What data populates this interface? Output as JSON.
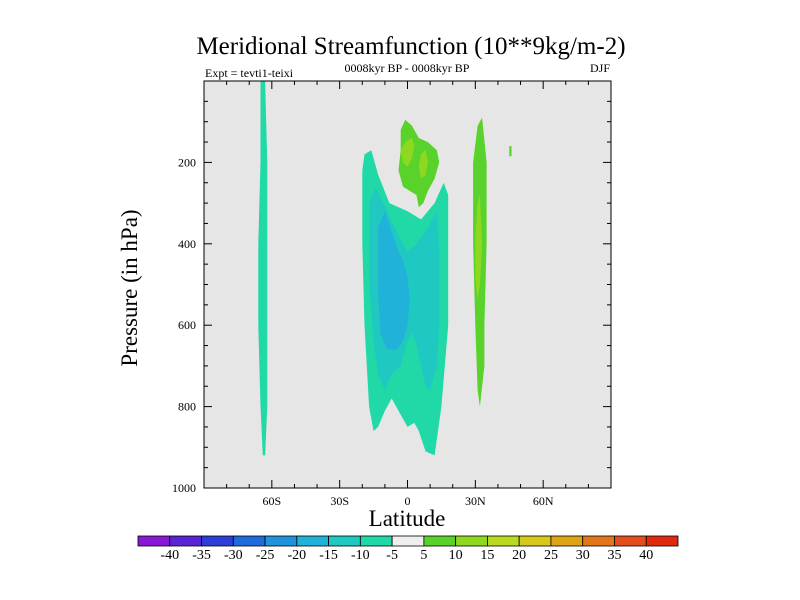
{
  "chart_data": {
    "type": "filled-contour",
    "title": "Meridional Streamfunction (10**9kg/m-2)",
    "subtitle_left": "Expt = tevti1-teixi",
    "subtitle_center": "0008kyr BP - 0008kyr BP",
    "subtitle_right": "DJF",
    "xlabel": "Latitude",
    "ylabel": "Pressure (in hPa)",
    "xlim": [
      -90,
      90
    ],
    "ylim": [
      1000,
      0
    ],
    "x_ticks": [
      {
        "value": -60,
        "label": "60S"
      },
      {
        "value": -30,
        "label": "30S"
      },
      {
        "value": 0,
        "label": "0"
      },
      {
        "value": 30,
        "label": "30N"
      },
      {
        "value": 60,
        "label": "60N"
      }
    ],
    "y_ticks": [
      {
        "value": 200,
        "label": "200"
      },
      {
        "value": 400,
        "label": "400"
      },
      {
        "value": 600,
        "label": "600"
      },
      {
        "value": 800,
        "label": "800"
      },
      {
        "value": 1000,
        "label": "1000"
      }
    ],
    "colorbar": {
      "levels": [
        -40,
        -35,
        -30,
        -25,
        -20,
        -15,
        -10,
        -5,
        5,
        10,
        15,
        20,
        25,
        30,
        35,
        40
      ],
      "labels": [
        "-40",
        "-35",
        "-30",
        "-25",
        "-20",
        "-15",
        "-10",
        "-5",
        "5",
        "10",
        "15",
        "20",
        "25",
        "30",
        "35",
        "40"
      ],
      "colors": [
        "#8a19d6",
        "#5a23d6",
        "#2b3fd8",
        "#1d6bdb",
        "#1f93db",
        "#20b2d8",
        "#1fc9c2",
        "#20d9a6",
        "#eeeeee",
        "#59d32b",
        "#8ed91f",
        "#b9d91e",
        "#d8c81a",
        "#dfa416",
        "#e3761a",
        "#e34c1d",
        "#df2a10"
      ]
    },
    "regions": [
      {
        "name": "strip-60s-neg-5-10",
        "level": "-5 to -10",
        "color": "#20d9a6",
        "points": [
          [
            -65,
            0
          ],
          [
            -63,
            0
          ],
          [
            -62,
            200
          ],
          [
            -62,
            600
          ],
          [
            -62,
            800
          ],
          [
            -63,
            920
          ],
          [
            -64,
            920
          ],
          [
            -65,
            800
          ],
          [
            -66,
            600
          ],
          [
            -66,
            400
          ],
          [
            -65,
            200
          ]
        ]
      },
      {
        "name": "sh-cell-outer",
        "level": "-5 to -10",
        "color": "#20d9a6",
        "points": [
          [
            -19,
            180
          ],
          [
            -16,
            170
          ],
          [
            -13,
            230
          ],
          [
            -8,
            300
          ],
          [
            0,
            320
          ],
          [
            6,
            340
          ],
          [
            12,
            300
          ],
          [
            16,
            250
          ],
          [
            18,
            280
          ],
          [
            18,
            600
          ],
          [
            15,
            800
          ],
          [
            12,
            920
          ],
          [
            8,
            910
          ],
          [
            5,
            860
          ],
          [
            3,
            840
          ],
          [
            0,
            850
          ],
          [
            -3,
            820
          ],
          [
            -7,
            780
          ],
          [
            -10,
            810
          ],
          [
            -13,
            850
          ],
          [
            -15,
            860
          ],
          [
            -17,
            800
          ],
          [
            -19,
            600
          ],
          [
            -20,
            400
          ],
          [
            -20,
            220
          ]
        ]
      },
      {
        "name": "sh-cell-inner",
        "level": "-10 to -15",
        "color": "#1fc9c2",
        "points": [
          [
            -17,
            300
          ],
          [
            -14,
            260
          ],
          [
            -9,
            320
          ],
          [
            -4,
            380
          ],
          [
            0,
            420
          ],
          [
            4,
            400
          ],
          [
            9,
            360
          ],
          [
            13,
            320
          ],
          [
            14,
            420
          ],
          [
            14,
            600
          ],
          [
            13,
            700
          ],
          [
            10,
            760
          ],
          [
            8,
            750
          ],
          [
            6,
            700
          ],
          [
            4,
            650
          ],
          [
            2,
            620
          ],
          [
            0,
            640
          ],
          [
            -3,
            700
          ],
          [
            -7,
            720
          ],
          [
            -10,
            760
          ],
          [
            -13,
            720
          ],
          [
            -15,
            640
          ],
          [
            -17,
            500
          ]
        ]
      },
      {
        "name": "sh-cell-core",
        "level": "-15 to -20",
        "color": "#20b2d8",
        "points": [
          [
            -13,
            360
          ],
          [
            -10,
            320
          ],
          [
            -7,
            370
          ],
          [
            -4,
            420
          ],
          [
            -2,
            440
          ],
          [
            0,
            480
          ],
          [
            1,
            540
          ],
          [
            0,
            600
          ],
          [
            -2,
            640
          ],
          [
            -5,
            660
          ],
          [
            -9,
            660
          ],
          [
            -12,
            620
          ],
          [
            -13,
            520
          ]
        ]
      },
      {
        "name": "sh-cell-east-core",
        "level": "-10 to -15",
        "color": "#1fc9c2",
        "points": [
          [
            3,
            470
          ],
          [
            5,
            430
          ],
          [
            7,
            450
          ],
          [
            8,
            500
          ],
          [
            7,
            560
          ],
          [
            5,
            600
          ],
          [
            3,
            580
          ],
          [
            2,
            520
          ]
        ]
      },
      {
        "name": "upper-pos-cell",
        "level": "5 to 10",
        "color": "#59d32b",
        "points": [
          [
            -3,
            120
          ],
          [
            -1,
            95
          ],
          [
            2,
            110
          ],
          [
            5,
            140
          ],
          [
            9,
            150
          ],
          [
            13,
            170
          ],
          [
            14,
            200
          ],
          [
            12,
            240
          ],
          [
            9,
            270
          ],
          [
            7,
            300
          ],
          [
            5,
            310
          ],
          [
            4,
            280
          ],
          [
            1,
            270
          ],
          [
            -2,
            260
          ],
          [
            -4,
            220
          ],
          [
            -3,
            170
          ]
        ]
      },
      {
        "name": "upper-pos-core-a",
        "level": "10 to 15",
        "color": "#8ed91f",
        "points": [
          [
            -1,
            150
          ],
          [
            2,
            140
          ],
          [
            3,
            160
          ],
          [
            2,
            190
          ],
          [
            0,
            210
          ],
          [
            -2,
            200
          ],
          [
            -3,
            170
          ]
        ]
      },
      {
        "name": "upper-pos-core-b",
        "level": "10 to 15",
        "color": "#8ed91f",
        "points": [
          [
            6,
            180
          ],
          [
            8,
            170
          ],
          [
            9,
            200
          ],
          [
            8,
            230
          ],
          [
            6,
            240
          ],
          [
            5,
            210
          ]
        ]
      },
      {
        "name": "nh-strip-pos",
        "level": "5 to 10",
        "color": "#59d32b",
        "points": [
          [
            31,
            110
          ],
          [
            33,
            90
          ],
          [
            35,
            200
          ],
          [
            35,
            400
          ],
          [
            34,
            600
          ],
          [
            34,
            700
          ],
          [
            32,
            800
          ],
          [
            31,
            760
          ],
          [
            30,
            600
          ],
          [
            29,
            400
          ],
          [
            29,
            200
          ]
        ]
      },
      {
        "name": "nh-strip-core",
        "level": "10 to 15",
        "color": "#8ed91f",
        "points": [
          [
            31,
            300
          ],
          [
            32,
            280
          ],
          [
            33,
            400
          ],
          [
            32,
            500
          ],
          [
            31,
            540
          ],
          [
            30,
            480
          ],
          [
            30,
            380
          ]
        ]
      },
      {
        "name": "nh-speck",
        "level": "5 to 10",
        "color": "#59d32b",
        "points": [
          [
            45,
            160
          ],
          [
            46,
            160
          ],
          [
            46,
            185
          ],
          [
            45,
            185
          ]
        ]
      }
    ]
  }
}
